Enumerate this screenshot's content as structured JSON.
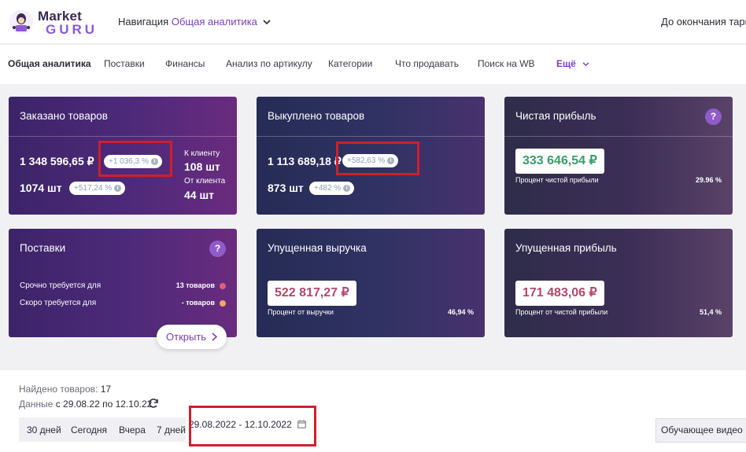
{
  "brand": {
    "line1": "Market",
    "line2": "GURU"
  },
  "header": {
    "nav_label": "Навигация",
    "nav_value": "Общая аналитика",
    "deadline": "До окончания тариф"
  },
  "tabs": [
    "Общая аналитика",
    "Поставки",
    "Финансы",
    "Анализ по артикулу",
    "Категории",
    "Что продавать",
    "Поиск на WB",
    "Ещё"
  ],
  "cards": {
    "ordered": {
      "title": "Заказано товаров",
      "amount": "1 348 596,65 ₽",
      "amount_change": "+1 036,3 %",
      "count": "1074 шт",
      "count_change": "+517,24 %",
      "to_client_label": "К клиенту",
      "to_client_value": "108 шт",
      "from_client_label": "От клиента",
      "from_client_value": "44 шт"
    },
    "bought": {
      "title": "Выкуплено товаров",
      "amount": "1 113 689,18 ₽",
      "amount_change": "+582,63 %",
      "count": "873 шт",
      "count_change": "+482 %"
    },
    "profit": {
      "title": "Чистая прибыль",
      "help": "?",
      "value": "333 646,54 ₽",
      "label": "Процент чистой прибыли",
      "percent": "29.96 %"
    },
    "supplies": {
      "title": "Поставки",
      "help": "?",
      "urgent_label": "Срочно требуется для",
      "urgent_value": "13 товаров",
      "soon_label": "Скоро требуется для",
      "soon_value": "- товаров",
      "open_button": "Открыть"
    },
    "lost_revenue": {
      "title": "Упущенная выручка",
      "value": "522 817,27 ₽",
      "label": "Процент от выручки",
      "percent": "46,94 %"
    },
    "lost_profit": {
      "title": "Упущенная прибыль",
      "value": "171 483,06 ₽",
      "label": "Процент от чистой прибыли",
      "percent": "51,4 %"
    }
  },
  "bottom": {
    "found_label": "Найдено товаров:",
    "found_value": "17",
    "data_label": "Данные",
    "data_value": "с 29.08.22 по 12.10.22",
    "quick_ranges": [
      "30 дней",
      "Сегодня",
      "Вчера",
      "7 дней"
    ],
    "date_range": "29.08.2022 - 12.10.2022",
    "video_button": "Обучающее видео"
  },
  "colors": {
    "accent": "#7b3fb8",
    "highlight_box": "#d11f2a",
    "profit_green": "#3a9c6a",
    "lost_pink": "#b3486a",
    "dot_urgent": "#e0607a",
    "dot_soon": "#f0a868"
  }
}
